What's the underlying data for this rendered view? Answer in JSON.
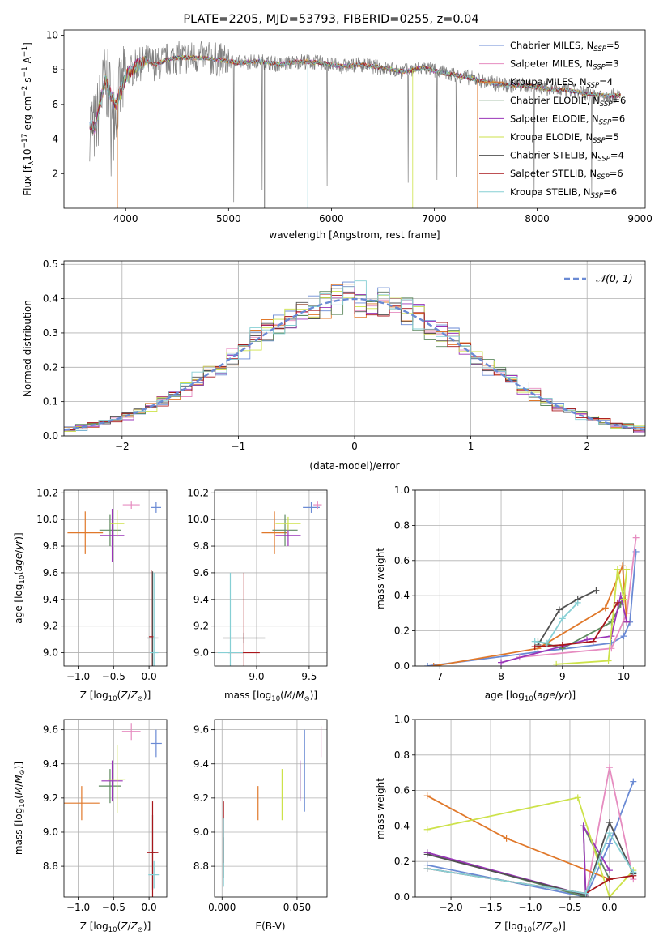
{
  "colors": {
    "Chabrier MILES": "#6a8ad4",
    "Salpeter MILES": "#e68cc0",
    "Kroupa MILES": "#e0782a",
    "Chabrier ELODIE": "#5f8a60",
    "Salpeter ELODIE": "#9a35b8",
    "Kroupa ELODIE": "#cde24a",
    "Chabrier STELIB": "#505050",
    "Salpeter STELIB": "#a8161b",
    "Kroupa STELIB": "#86cfd4"
  },
  "chart_data": [
    {
      "type": "line",
      "title": "PLATE=2205, MJD=53793, FIBERID=0255, z=0.04",
      "xlabel": "wavelength [Angstrom, rest frame]",
      "ylabel": "Flux [f_λ 10^-17 erg cm^-2 s^-1 A^-1]",
      "xlim": [
        3400,
        9050
      ],
      "ylim": [
        0,
        10.3
      ],
      "xticks": [
        4000,
        5000,
        6000,
        7000,
        8000,
        9000
      ],
      "yticks": [
        2,
        4,
        6,
        8,
        10
      ],
      "grid": false,
      "legend_placement": "top-right",
      "legend": [
        {
          "name": "Chabrier MILES",
          "nssp": "5"
        },
        {
          "name": "Salpeter MILES",
          "nssp": "3"
        },
        {
          "name": "Kroupa MILES",
          "nssp": "4"
        },
        {
          "name": "Chabrier ELODIE",
          "nssp": "6"
        },
        {
          "name": "Salpeter ELODIE",
          "nssp": "6"
        },
        {
          "name": "Kroupa ELODIE",
          "nssp": "5"
        },
        {
          "name": "Chabrier STELIB",
          "nssp": "4"
        },
        {
          "name": "Salpeter STELIB",
          "nssp": "6"
        },
        {
          "name": "Kroupa STELIB",
          "nssp": "6"
        }
      ],
      "spectrum_wavelength": [
        3650,
        3700,
        3800,
        3900,
        4000,
        4100,
        4200,
        4300,
        4400,
        4500,
        4700,
        4900,
        5100,
        5300,
        5500,
        5700,
        5900,
        6100,
        6300,
        6500,
        6700,
        6900,
        7100,
        7300,
        7500,
        7700,
        7900,
        8100,
        8300,
        8500,
        8700,
        8800
      ],
      "spectrum_flux": [
        4.9,
        4.6,
        7.4,
        5.9,
        7.6,
        8.2,
        8.5,
        8.3,
        8.6,
        8.7,
        8.7,
        8.6,
        8.4,
        8.5,
        8.3,
        8.5,
        8.4,
        8.2,
        8.3,
        8.1,
        7.9,
        8.1,
        7.8,
        7.6,
        7.3,
        7.1,
        7.1,
        6.9,
        6.8,
        6.6,
        6.5,
        6.5
      ]
    },
    {
      "type": "step",
      "xlabel": "(data-model)/error",
      "ylabel": "Normed distribution",
      "xlim": [
        -2.5,
        2.5
      ],
      "ylim": [
        0,
        0.51
      ],
      "xticks": [
        -2,
        -1,
        0,
        1,
        2
      ],
      "yticks": [
        0.0,
        0.1,
        0.2,
        0.3,
        0.4,
        0.5
      ],
      "grid": true,
      "legend_placement": "top-right",
      "legend_label": "𝒩(0, 1)",
      "series_note": "one normalized residual histogram per model; dashed line is the standard normal pdf"
    },
    {
      "type": "errorbar",
      "xlabel": "Z [log10(Z/Z☉)]",
      "ylabel": "age [log10(age/yr)]",
      "xlim": [
        -1.2,
        0.25
      ],
      "ylim": [
        8.9,
        10.22
      ],
      "xticks": [
        -1.0,
        -0.5,
        0.0
      ],
      "yticks": [
        9.0,
        9.2,
        9.4,
        9.6,
        9.8,
        10.0,
        10.2
      ],
      "grid": true,
      "points": [
        {
          "model": "Chabrier MILES",
          "x": 0.1,
          "y": 10.09,
          "xerr": 0.07,
          "yerr": 0.04
        },
        {
          "model": "Salpeter MILES",
          "x": -0.25,
          "y": 10.11,
          "xerr": 0.12,
          "yerr": 0.03
        },
        {
          "model": "Kroupa MILES",
          "x": -0.9,
          "y": 9.9,
          "xerr": 0.25,
          "yerr": 0.16
        },
        {
          "model": "Chabrier ELODIE",
          "x": -0.55,
          "y": 9.92,
          "xerr": 0.15,
          "yerr": 0.12
        },
        {
          "model": "Salpeter ELODIE",
          "x": -0.52,
          "y": 9.88,
          "xerr": 0.17,
          "yerr": 0.2
        },
        {
          "model": "Kroupa ELODIE",
          "x": -0.45,
          "y": 9.97,
          "xerr": 0.1,
          "yerr": 0.1
        },
        {
          "model": "Chabrier STELIB",
          "x": 0.05,
          "y": 9.11,
          "xerr": 0.08,
          "yerr": 0.5
        },
        {
          "model": "Salpeter STELIB",
          "x": 0.03,
          "y": 9.12,
          "xerr": 0.03,
          "yerr": 0.5
        },
        {
          "model": "Kroupa STELIB",
          "x": 0.07,
          "y": 9.0,
          "xerr": 0.06,
          "yerr": 0.6
        }
      ]
    },
    {
      "type": "errorbar",
      "xlabel": "mass [log10(M/M☉)]",
      "ylabel": "",
      "xlim": [
        8.6,
        9.67
      ],
      "ylim": [
        8.9,
        10.22
      ],
      "xticks": [
        9.0,
        9.5
      ],
      "yticks": [
        9.0,
        9.2,
        9.4,
        9.6,
        9.8,
        10.0,
        10.2
      ],
      "grid": true,
      "points": [
        {
          "model": "Chabrier MILES",
          "x": 9.52,
          "y": 10.09,
          "xerr": 0.08,
          "yerr": 0.04
        },
        {
          "model": "Salpeter MILES",
          "x": 9.58,
          "y": 10.11,
          "xerr": 0.04,
          "yerr": 0.03
        },
        {
          "model": "Kroupa MILES",
          "x": 9.17,
          "y": 9.9,
          "xerr": 0.12,
          "yerr": 0.16
        },
        {
          "model": "Chabrier ELODIE",
          "x": 9.27,
          "y": 9.92,
          "xerr": 0.12,
          "yerr": 0.12
        },
        {
          "model": "Salpeter ELODIE",
          "x": 9.3,
          "y": 9.88,
          "xerr": 0.12,
          "yerr": 0.08
        },
        {
          "model": "Kroupa ELODIE",
          "x": 9.3,
          "y": 9.97,
          "xerr": 0.12,
          "yerr": 0.05
        },
        {
          "model": "Chabrier STELIB",
          "x": 8.88,
          "y": 9.11,
          "xerr": 0.2,
          "yerr": 0.04
        },
        {
          "model": "Salpeter STELIB",
          "x": 8.88,
          "y": 9.0,
          "xerr": 0.15,
          "yerr": 0.6
        },
        {
          "model": "Kroupa STELIB",
          "x": 8.75,
          "y": 9.0,
          "xerr": 0.12,
          "yerr": 0.6
        }
      ]
    },
    {
      "type": "line",
      "xlabel": "age [log10(age/yr)]",
      "ylabel": "mass weight",
      "xlim": [
        6.6,
        10.35
      ],
      "ylim": [
        0,
        1.0
      ],
      "xticks": [
        7,
        8,
        9,
        10
      ],
      "yticks": [
        0.0,
        0.2,
        0.4,
        0.6,
        0.8,
        1.0
      ],
      "grid": true,
      "series": [
        {
          "name": "Chabrier MILES",
          "x": [
            6.8,
            8.6,
            9.8,
            10.0,
            10.1,
            10.2
          ],
          "y": [
            0.0,
            0.08,
            0.13,
            0.17,
            0.25,
            0.65
          ]
        },
        {
          "name": "Salpeter MILES",
          "x": [
            8.3,
            9.8,
            10.05,
            10.2
          ],
          "y": [
            0.05,
            0.1,
            0.3,
            0.73
          ]
        },
        {
          "name": "Kroupa MILES",
          "x": [
            6.9,
            8.6,
            9.7,
            9.98,
            10.05
          ],
          "y": [
            0.0,
            0.1,
            0.33,
            0.57,
            0.25
          ]
        },
        {
          "name": "Chabrier ELODIE",
          "x": [
            8.6,
            9.0,
            9.8,
            9.95,
            10.0
          ],
          "y": [
            0.14,
            0.1,
            0.25,
            0.35,
            0.4
          ]
        },
        {
          "name": "Salpeter ELODIE",
          "x": [
            8.0,
            9.4,
            9.8,
            9.95,
            10.05
          ],
          "y": [
            0.02,
            0.15,
            0.17,
            0.4,
            0.25
          ]
        },
        {
          "name": "Kroupa ELODIE",
          "x": [
            8.9,
            9.75,
            9.9,
            10.0,
            10.05
          ],
          "y": [
            0.01,
            0.03,
            0.55,
            0.38,
            0.55
          ]
        },
        {
          "name": "Chabrier STELIB",
          "x": [
            8.6,
            8.95,
            9.25,
            9.55
          ],
          "y": [
            0.12,
            0.32,
            0.38,
            0.43
          ]
        },
        {
          "name": "Salpeter STELIB",
          "x": [
            8.55,
            9.0,
            9.5,
            9.9
          ],
          "y": [
            0.11,
            0.12,
            0.14,
            0.36
          ]
        },
        {
          "name": "Kroupa STELIB",
          "x": [
            8.55,
            8.75,
            9.0,
            9.25
          ],
          "y": [
            0.14,
            0.13,
            0.27,
            0.36
          ]
        }
      ]
    },
    {
      "type": "errorbar",
      "xlabel": "Z [log10(Z/Z☉)]",
      "ylabel": "mass [log10(M/M☉)]",
      "xlim": [
        -1.2,
        0.25
      ],
      "ylim": [
        8.62,
        9.66
      ],
      "xticks": [
        -1.0,
        -0.5,
        0.0
      ],
      "yticks": [
        8.8,
        9.0,
        9.2,
        9.4,
        9.6
      ],
      "grid": true,
      "points": [
        {
          "model": "Chabrier MILES",
          "x": 0.1,
          "y": 9.52,
          "xerr": 0.08,
          "yerr": 0.08
        },
        {
          "model": "Salpeter MILES",
          "x": -0.25,
          "y": 9.59,
          "xerr": 0.13,
          "yerr": 0.05
        },
        {
          "model": "Kroupa MILES",
          "x": -0.95,
          "y": 9.17,
          "xerr": 0.25,
          "yerr": 0.1
        },
        {
          "model": "Chabrier ELODIE",
          "x": -0.55,
          "y": 9.27,
          "xerr": 0.16,
          "yerr": 0.1
        },
        {
          "model": "Salpeter ELODIE",
          "x": -0.52,
          "y": 9.3,
          "xerr": 0.15,
          "yerr": 0.12
        },
        {
          "model": "Kroupa ELODIE",
          "x": -0.45,
          "y": 9.31,
          "xerr": 0.12,
          "yerr": 0.2
        },
        {
          "model": "Chabrier STELIB",
          "x": 0.05,
          "y": 8.88,
          "xerr": 0.03,
          "yerr": 0.22
        },
        {
          "model": "Salpeter STELIB",
          "x": 0.05,
          "y": 8.88,
          "xerr": 0.08,
          "yerr": 0.3
        },
        {
          "model": "Kroupa STELIB",
          "x": 0.07,
          "y": 8.75,
          "xerr": 0.08,
          "yerr": 0.08
        }
      ]
    },
    {
      "type": "errorbar",
      "xlabel": "E(B-V)",
      "ylabel": "",
      "xlim": [
        -0.005,
        0.07
      ],
      "ylim": [
        8.62,
        9.66
      ],
      "xticks": [
        0.0,
        0.05
      ],
      "xticklabels": [
        "0.000",
        "0.050"
      ],
      "yticks": [
        8.8,
        9.0,
        9.2,
        9.4,
        9.6
      ],
      "grid": true,
      "points": [
        {
          "model": "Chabrier MILES",
          "x": 0.055,
          "y": 9.36,
          "xerr": 0,
          "yerr": 0.24
        },
        {
          "model": "Salpeter MILES",
          "x": 0.066,
          "y": 9.53,
          "xerr": 0,
          "yerr": 0.09
        },
        {
          "model": "Kroupa MILES",
          "x": 0.024,
          "y": 9.17,
          "xerr": 0,
          "yerr": 0.1
        },
        {
          "model": "Chabrier ELODIE",
          "x": 0.052,
          "y": 9.3,
          "xerr": 0,
          "yerr": 0.1
        },
        {
          "model": "Salpeter ELODIE",
          "x": 0.052,
          "y": 9.3,
          "xerr": 0,
          "yerr": 0.12
        },
        {
          "model": "Kroupa ELODIE",
          "x": 0.04,
          "y": 9.22,
          "xerr": 0,
          "yerr": 0.15
        },
        {
          "model": "Chabrier STELIB",
          "x": 0.001,
          "y": 8.85,
          "xerr": 0,
          "yerr": 0.12
        },
        {
          "model": "Salpeter STELIB",
          "x": 0.001,
          "y": 9.0,
          "xerr": 0,
          "yerr": 0.18
        },
        {
          "model": "Kroupa STELIB",
          "x": 0.001,
          "y": 8.88,
          "xerr": 0,
          "yerr": 0.2
        }
      ]
    },
    {
      "type": "line",
      "xlabel": "Z [log10(Z/Z☉)]",
      "ylabel": "mass weight",
      "xlim": [
        -2.45,
        0.45
      ],
      "ylim": [
        0,
        1.0
      ],
      "xticks": [
        -2.0,
        -1.5,
        -1.0,
        -0.5,
        0.0
      ],
      "yticks": [
        0.0,
        0.2,
        0.4,
        0.6,
        0.8,
        1.0
      ],
      "grid": true,
      "series": [
        {
          "name": "Chabrier MILES",
          "x": [
            -2.3,
            -0.3,
            0.0,
            0.3
          ],
          "y": [
            0.18,
            0.0,
            0.3,
            0.65
          ]
        },
        {
          "name": "Salpeter MILES",
          "x": [
            -0.3,
            0.0,
            0.3
          ],
          "y": [
            0.0,
            0.73,
            0.1
          ]
        },
        {
          "name": "Kroupa MILES",
          "x": [
            -2.3,
            -1.3,
            0.0
          ],
          "y": [
            0.57,
            0.33,
            0.1
          ]
        },
        {
          "name": "Chabrier ELODIE",
          "x": [
            -2.3,
            -0.3,
            -0.33,
            0.0
          ],
          "y": [
            0.25,
            0.0,
            0.4,
            0.1
          ]
        },
        {
          "name": "Salpeter ELODIE",
          "x": [
            -2.3,
            -0.3,
            -0.33,
            0.0
          ],
          "y": [
            0.25,
            0.01,
            0.4,
            0.15
          ]
        },
        {
          "name": "Kroupa ELODIE",
          "x": [
            -2.3,
            -0.4,
            0.0,
            0.3
          ],
          "y": [
            0.38,
            0.56,
            0.0,
            0.15
          ]
        },
        {
          "name": "Chabrier STELIB",
          "x": [
            -2.3,
            -0.3,
            0.0,
            0.3
          ],
          "y": [
            0.24,
            0.01,
            0.42,
            0.13
          ]
        },
        {
          "name": "Salpeter STELIB",
          "x": [
            -2.3,
            -0.3,
            0.0,
            0.3
          ],
          "y": [
            0.16,
            0.02,
            0.1,
            0.12
          ]
        },
        {
          "name": "Kroupa STELIB",
          "x": [
            -2.3,
            -0.3,
            0.0,
            0.3
          ],
          "y": [
            0.16,
            0.02,
            0.36,
            0.14
          ]
        }
      ]
    }
  ]
}
